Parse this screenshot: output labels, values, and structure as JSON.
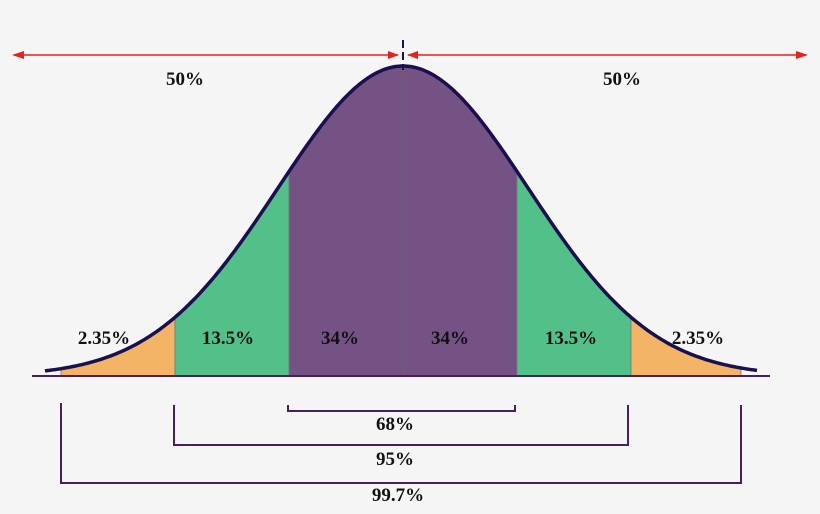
{
  "labels": {
    "left_half": "50%",
    "right_half": "50%",
    "tail_left": "2.35%",
    "band2_left": "13.5%",
    "band1_left": "34%",
    "band1_right": "34%",
    "band2_right": "13.5%",
    "tail_right": "2.35%",
    "range_1sd": "68%",
    "range_2sd": "95%",
    "range_3sd": "99.7%"
  },
  "colors": {
    "band1": "#745284",
    "band2": "#53c08a",
    "tail": "#f3b466",
    "curve": "#1a1050",
    "arrow": "#e5231b",
    "bracket": "#4a1f5e"
  }
}
